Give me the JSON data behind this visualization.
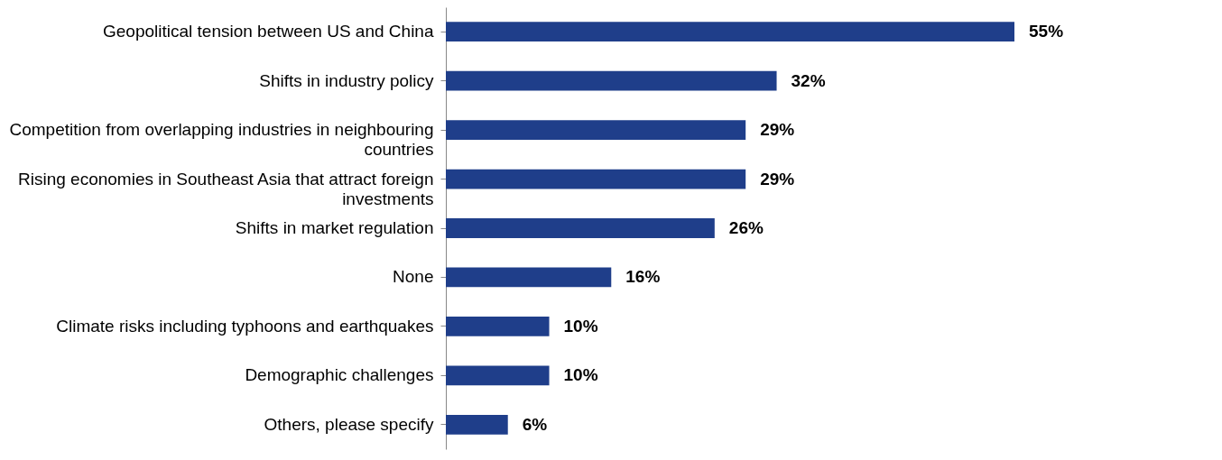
{
  "chart_data": {
    "type": "bar",
    "orientation": "horizontal",
    "categories": [
      "Geopolitical tension between US and China",
      "Shifts in industry policy",
      "Competition from overlapping industries in neighbouring countries",
      "Rising economies in Southeast Asia that attract foreign investments",
      "Shifts in market regulation",
      "None",
      "Climate risks including typhoons and earthquakes",
      "Demographic challenges",
      "Others, please specify"
    ],
    "values": [
      55,
      32,
      29,
      29,
      26,
      16,
      10,
      10,
      6
    ],
    "value_labels": [
      "55%",
      "32%",
      "29%",
      "29%",
      "26%",
      "16%",
      "10%",
      "10%",
      "6%"
    ],
    "color": "#1f3e8a",
    "tick_labels": "y"
  }
}
